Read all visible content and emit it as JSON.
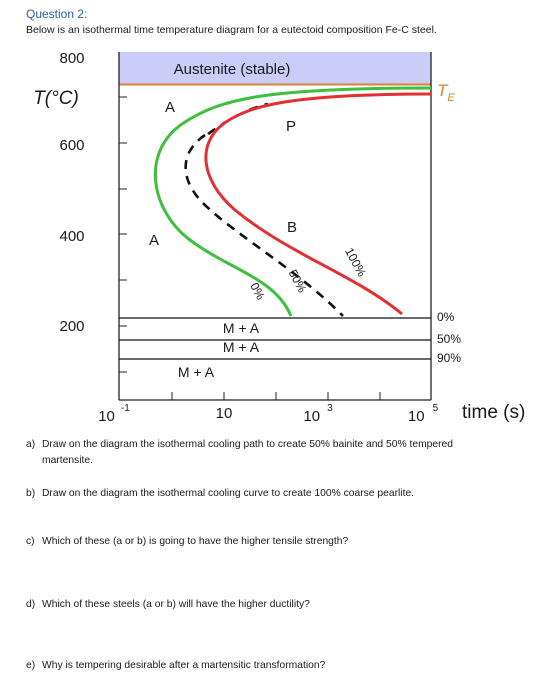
{
  "header": {
    "question_label": "Question 2:",
    "intro": "Below is an isothermal time temperature diagram for a eutectoid composition Fe-C steel."
  },
  "diagram": {
    "y_label": "T(°C)",
    "y_ticks": [
      "800",
      "600",
      "400",
      "200"
    ],
    "austenite_region_label": "Austenite (stable)",
    "te_label_main": "T",
    "te_label_sub": "E",
    "austenite_labels": [
      "A",
      "A"
    ],
    "transform_labels": {
      "pearlite": "P",
      "bainite": "B"
    },
    "curve_labels": {
      "start": "0%",
      "middle": "50%",
      "finish": "100%"
    },
    "martensite_labels": [
      "M + A",
      "M + A",
      "M + A"
    ],
    "martensite_percent": [
      "0%",
      "50%",
      "90%"
    ],
    "x_label": "time (s)",
    "x_ticks": [
      {
        "base": "10",
        "exp": "-1"
      },
      {
        "base": "10",
        "exp": ""
      },
      {
        "base": "10",
        "exp": "3"
      },
      {
        "base": "10",
        "exp": "5"
      }
    ],
    "colors": {
      "austenite_fill": "#c9cdf7",
      "te_line": "#d9833a",
      "start_curve": "#3fbf3f",
      "finish_curve": "#e23030",
      "te_text": "#d9833a"
    }
  },
  "questions": [
    {
      "letter": "a)",
      "text": "Draw on the diagram the isothermal cooling path to create 50% bainite and 50% tempered",
      "text2": "martensite."
    },
    {
      "letter": "b)",
      "text": "Draw on the diagram the isothermal cooling curve to create 100% coarse pearlite."
    },
    {
      "letter": "c)",
      "text": "Which of these (a or b) is going to have the higher tensile strength?"
    },
    {
      "letter": "d)",
      "text": "Which of these steels (a or b) will have the higher ductility?"
    },
    {
      "letter": "e)",
      "text": "Why is tempering desirable after a martensitic transformation?"
    }
  ]
}
